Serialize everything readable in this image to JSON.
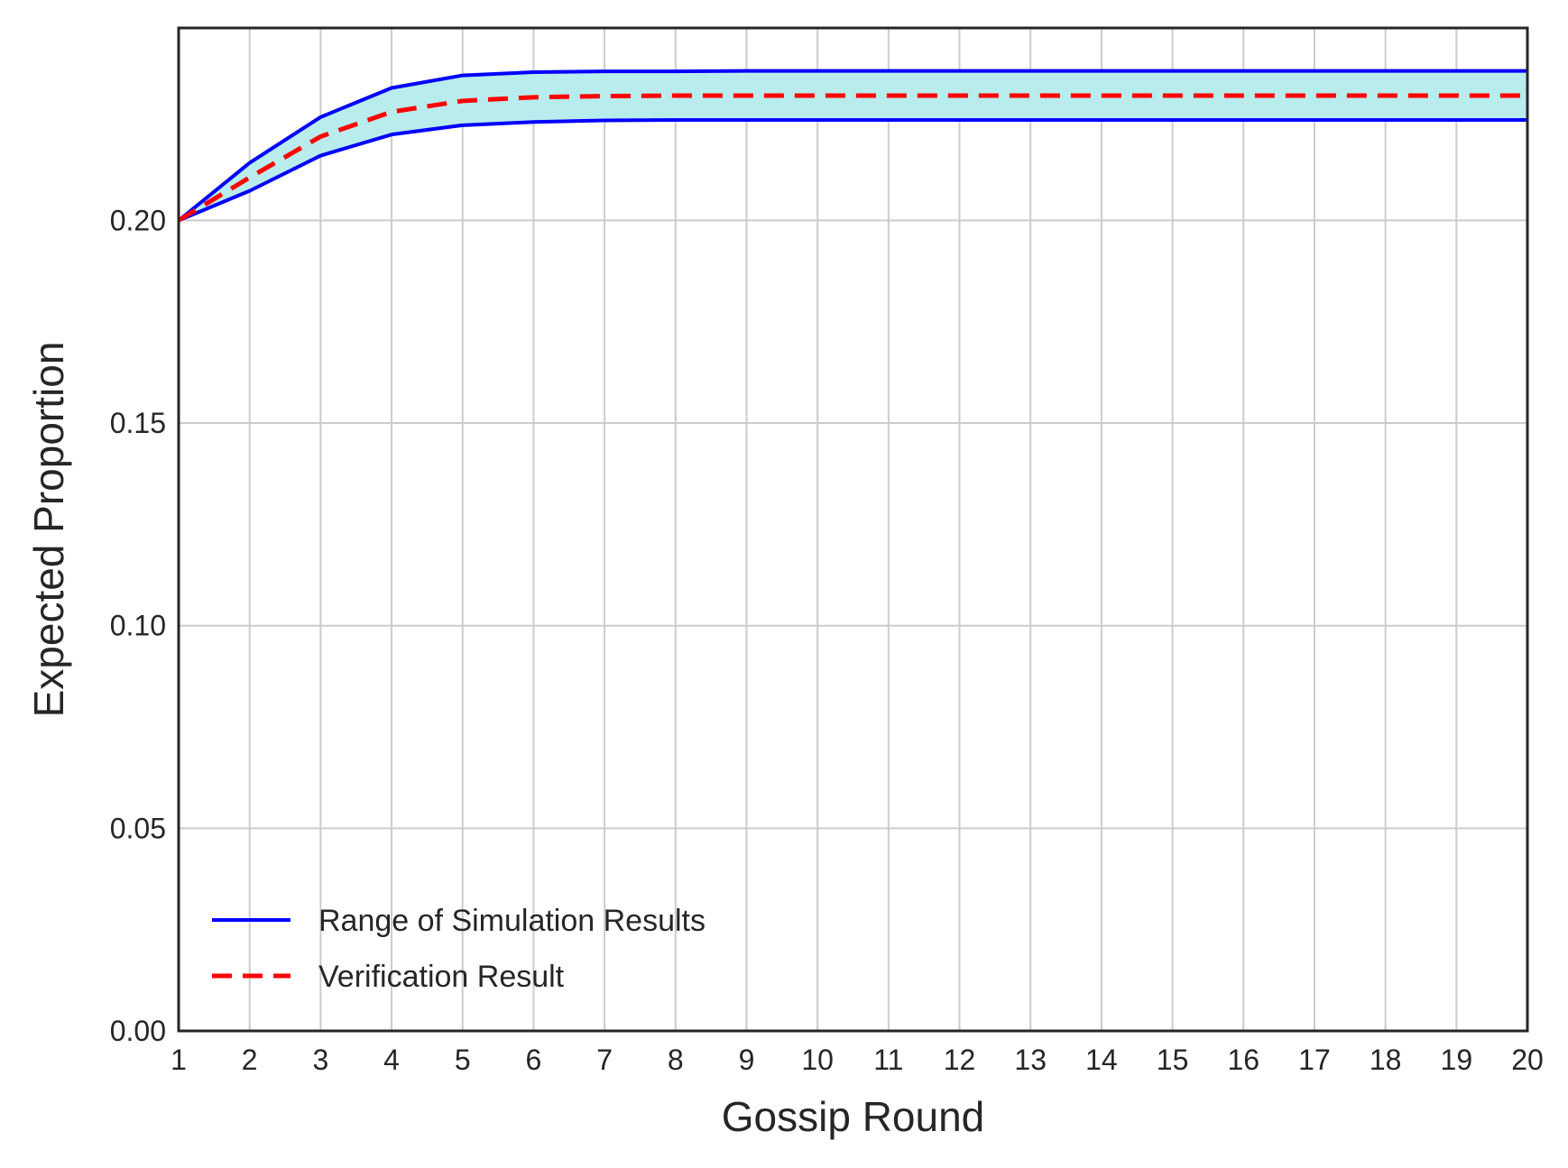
{
  "chart_data": {
    "type": "line",
    "xlabel": "Gossip Round",
    "ylabel": "Expected Proportion",
    "xlim": [
      1,
      20
    ],
    "ylim": [
      0,
      0.2475
    ],
    "grid": true,
    "legend_position": "lower-left",
    "x": [
      1,
      2,
      3,
      4,
      5,
      6,
      7,
      8,
      9,
      10,
      11,
      12,
      13,
      14,
      15,
      16,
      17,
      18,
      19,
      20
    ],
    "x_ticks": [
      "1",
      "2",
      "3",
      "4",
      "5",
      "6",
      "7",
      "8",
      "9",
      "10",
      "11",
      "12",
      "13",
      "14",
      "15",
      "16",
      "17",
      "18",
      "19",
      "20"
    ],
    "y_ticks": [
      "0.00",
      "0.05",
      "0.10",
      "0.15",
      "0.20"
    ],
    "y_tick_values": [
      0,
      0.05,
      0.1,
      0.15,
      0.2
    ],
    "series": [
      {
        "name": "Range of Simulation Results",
        "role": "range",
        "color": "#0000ff",
        "fill_color": "#b9ecec",
        "upper": [
          0.2,
          0.2142,
          0.2255,
          0.2327,
          0.2358,
          0.2366,
          0.2368,
          0.2368,
          0.2369,
          0.2369,
          0.2369,
          0.2369,
          0.2369,
          0.2369,
          0.2369,
          0.2369,
          0.2369,
          0.2369,
          0.2369,
          0.2369
        ],
        "lower": [
          0.2,
          0.2073,
          0.216,
          0.2212,
          0.2235,
          0.2243,
          0.2247,
          0.2248,
          0.2248,
          0.2248,
          0.2248,
          0.2248,
          0.2248,
          0.2248,
          0.2248,
          0.2248,
          0.2248,
          0.2248,
          0.2248,
          0.2248
        ]
      },
      {
        "name": "Verification Result",
        "role": "line",
        "color": "#ff0000",
        "dash": true,
        "values": [
          0.2,
          0.2106,
          0.2207,
          0.2268,
          0.2295,
          0.2304,
          0.2307,
          0.2308,
          0.2308,
          0.2308,
          0.2308,
          0.2308,
          0.2308,
          0.2308,
          0.2308,
          0.2308,
          0.2308,
          0.2308,
          0.2308,
          0.2308
        ]
      }
    ]
  }
}
